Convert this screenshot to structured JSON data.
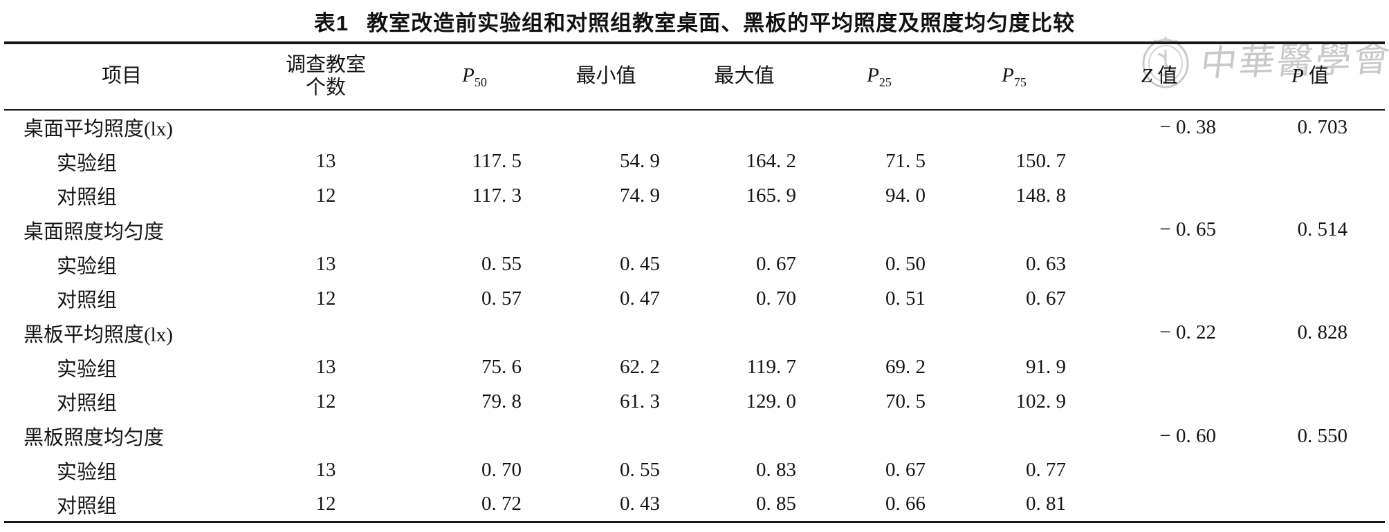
{
  "page": {
    "background": "#ffffff",
    "text_color": "#141414"
  },
  "title": {
    "prefix": "表1",
    "text": "教室改造前实验组和对照组教室桌面、黑板的平均照度及照度均匀度比较"
  },
  "watermark": {
    "text": "中華醫學會",
    "color": "#c9c9c9",
    "emblem": "medical-association-seal"
  },
  "table": {
    "headers": [
      {
        "id": "item",
        "label": "项目"
      },
      {
        "id": "classroom-count",
        "label": "调查教室",
        "label2": "个数"
      },
      {
        "id": "p50",
        "var": "P",
        "sub": "50"
      },
      {
        "id": "min",
        "label": "最小值"
      },
      {
        "id": "max",
        "label": "最大值"
      },
      {
        "id": "p25",
        "var": "P",
        "sub": "25"
      },
      {
        "id": "p75",
        "var": "P",
        "sub": "75"
      },
      {
        "id": "z-value",
        "var": "Z",
        "suffix": "值"
      },
      {
        "id": "p-value",
        "var": "P",
        "suffix": "值"
      }
    ],
    "rows": [
      {
        "type": "section",
        "item": "桌面平均照度(lx)",
        "values": [
          "",
          "",
          "",
          "",
          "",
          "",
          "− 0. 38",
          "0. 703"
        ]
      },
      {
        "type": "group",
        "item": "实验组",
        "values": [
          "13",
          "117. 5",
          "54. 9",
          "164. 2",
          "71. 5",
          "150. 7",
          "",
          ""
        ]
      },
      {
        "type": "group",
        "item": "对照组",
        "values": [
          "12",
          "117. 3",
          "74. 9",
          "165. 9",
          "94. 0",
          "148. 8",
          "",
          ""
        ]
      },
      {
        "type": "section",
        "item": "桌面照度均匀度",
        "values": [
          "",
          "",
          "",
          "",
          "",
          "",
          "− 0. 65",
          "0. 514"
        ]
      },
      {
        "type": "group",
        "item": "实验组",
        "values": [
          "13",
          "0. 55",
          "0. 45",
          "0. 67",
          "0. 50",
          "0. 63",
          "",
          ""
        ]
      },
      {
        "type": "group",
        "item": "对照组",
        "values": [
          "12",
          "0. 57",
          "0. 47",
          "0. 70",
          "0. 51",
          "0. 67",
          "",
          ""
        ]
      },
      {
        "type": "section",
        "item": "黑板平均照度(lx)",
        "values": [
          "",
          "",
          "",
          "",
          "",
          "",
          "− 0. 22",
          "0. 828"
        ]
      },
      {
        "type": "group",
        "item": "实验组",
        "values": [
          "13",
          "75. 6",
          "62. 2",
          "119. 7",
          "69. 2",
          "91. 9",
          "",
          ""
        ]
      },
      {
        "type": "group",
        "item": "对照组",
        "values": [
          "12",
          "79. 8",
          "61. 3",
          "129. 0",
          "70. 5",
          "102. 9",
          "",
          ""
        ]
      },
      {
        "type": "section",
        "item": "黑板照度均匀度",
        "values": [
          "",
          "",
          "",
          "",
          "",
          "",
          "− 0. 60",
          "0. 550"
        ]
      },
      {
        "type": "group",
        "item": "实验组",
        "values": [
          "13",
          "0. 70",
          "0. 55",
          "0. 83",
          "0. 67",
          "0. 77",
          "",
          ""
        ]
      },
      {
        "type": "group",
        "item": "对照组",
        "values": [
          "12",
          "0. 72",
          "0. 43",
          "0. 85",
          "0. 66",
          "0. 81",
          "",
          ""
        ]
      }
    ]
  }
}
